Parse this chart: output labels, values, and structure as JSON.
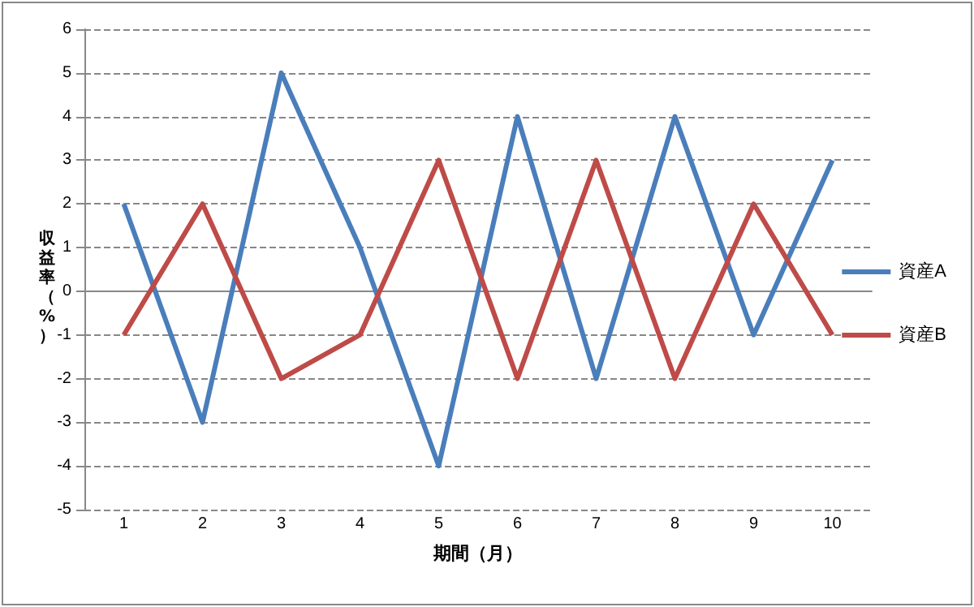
{
  "chart_data": {
    "type": "line",
    "xlabel": "期間（月）",
    "ylabel": "収益率（%）",
    "categories": [
      "1",
      "2",
      "3",
      "4",
      "5",
      "6",
      "7",
      "8",
      "9",
      "10"
    ],
    "series": [
      {
        "name": "資産A",
        "color": "#4a7ebb",
        "values": [
          2,
          -3,
          5,
          1,
          -4,
          4,
          -2,
          4,
          -1,
          3
        ]
      },
      {
        "name": "資産B",
        "color": "#be4b48",
        "values": [
          -1,
          2,
          -2,
          -1,
          3,
          -2,
          3,
          -2,
          2,
          -1
        ]
      }
    ],
    "ylim": [
      -5,
      6
    ],
    "yticks": [
      -5,
      -4,
      -3,
      -2,
      -1,
      0,
      1,
      2,
      3,
      4,
      5,
      6
    ],
    "grid": "y",
    "legend": "right",
    "marker": "none",
    "line_style": "solid"
  }
}
